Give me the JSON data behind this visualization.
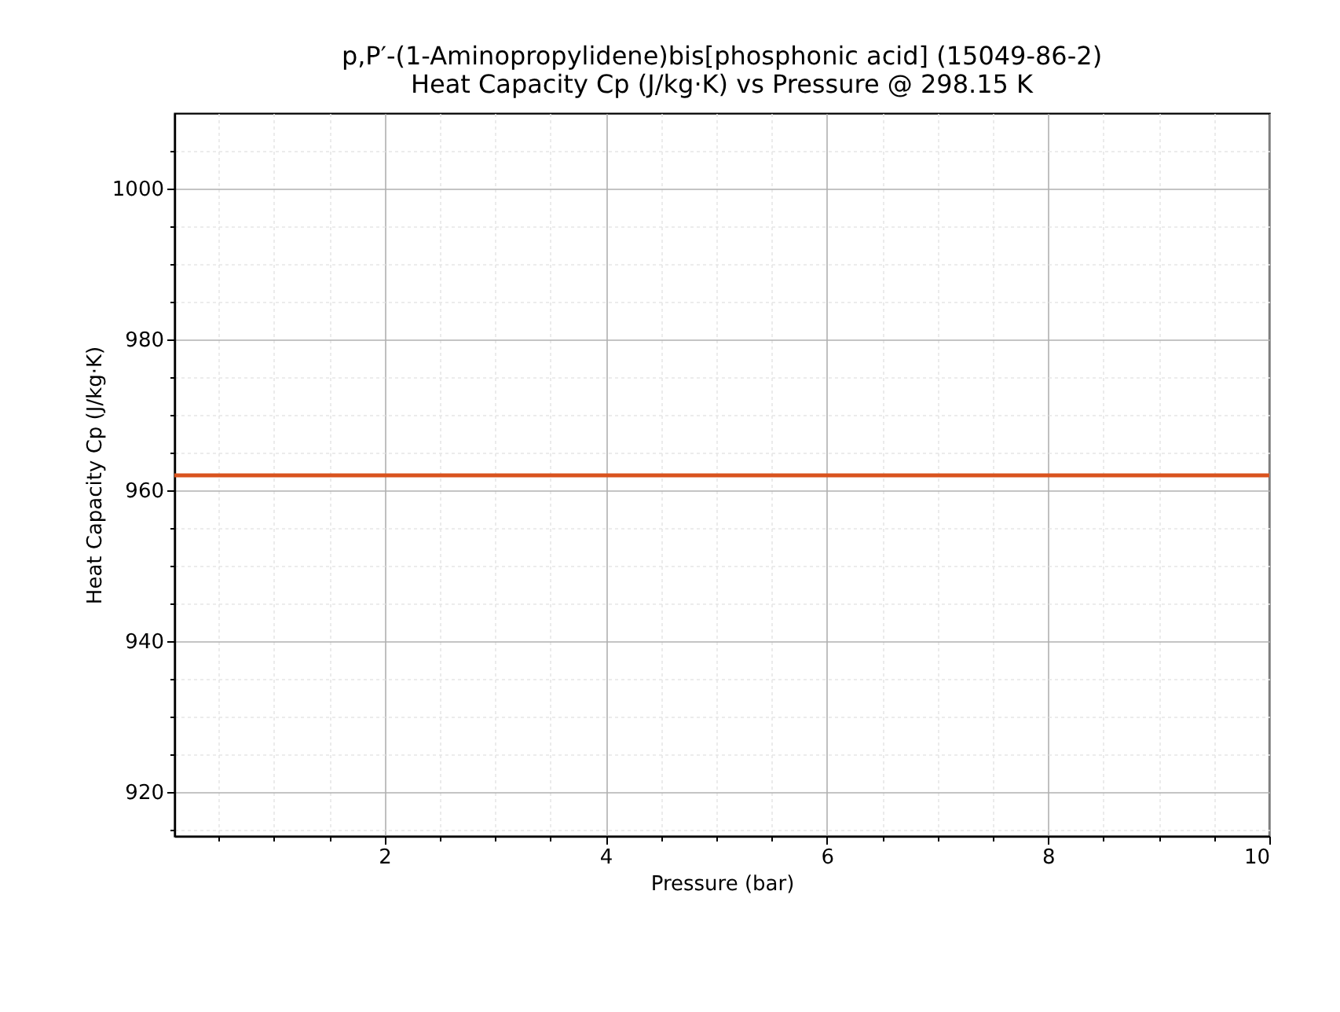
{
  "chart_data": {
    "type": "line",
    "title": "p,P′-(1-Aminopropylidene)bis[phosphonic acid] (15049-86-2)\nHeat Capacity Cp (J/kg·K) vs Pressure @ 298.15 K",
    "xlabel": "Pressure (bar)",
    "ylabel": "Heat Capacity Cp (J/kg·K)",
    "x": [
      0.1,
      10
    ],
    "series": [
      {
        "color": "#d9531e",
        "values": [
          962,
          962
        ]
      }
    ],
    "xlim": [
      0.1,
      10
    ],
    "ylim": [
      914.2,
      1010
    ],
    "xticks": [
      {
        "value": 0.5,
        "label": null
      },
      {
        "value": 1,
        "label": null
      },
      {
        "value": 1.5,
        "label": null
      },
      2,
      {
        "value": 2.5,
        "label": null
      },
      {
        "value": 3,
        "label": null
      },
      {
        "value": 3.5,
        "label": null
      },
      4,
      {
        "value": 4.5,
        "label": null
      },
      {
        "value": 5,
        "label": null
      },
      {
        "value": 5.5,
        "label": null
      },
      6,
      {
        "value": 6.5,
        "label": null
      },
      {
        "value": 7,
        "label": null
      },
      {
        "value": 7.5,
        "label": null
      },
      8,
      {
        "value": 8.5,
        "label": null
      },
      {
        "value": 9,
        "label": null
      },
      {
        "value": 9.5,
        "label": null
      },
      10
    ],
    "yticks": [
      {
        "value": 915,
        "label": null
      },
      920,
      {
        "value": 925,
        "label": null
      },
      {
        "value": 930,
        "label": null
      },
      {
        "value": 935,
        "label": null
      },
      940,
      {
        "value": 945,
        "label": null
      },
      {
        "value": 950,
        "label": null
      },
      {
        "value": 955,
        "label": null
      },
      960,
      {
        "value": 965,
        "label": null
      },
      {
        "value": 970,
        "label": null
      },
      {
        "value": 975,
        "label": null
      },
      980,
      {
        "value": 985,
        "label": null
      },
      {
        "value": 990,
        "label": null
      },
      {
        "value": 995,
        "label": null
      },
      1000,
      {
        "value": 1005,
        "label": null
      }
    ],
    "grid": true,
    "line_style": "solid",
    "marker": "none"
  }
}
